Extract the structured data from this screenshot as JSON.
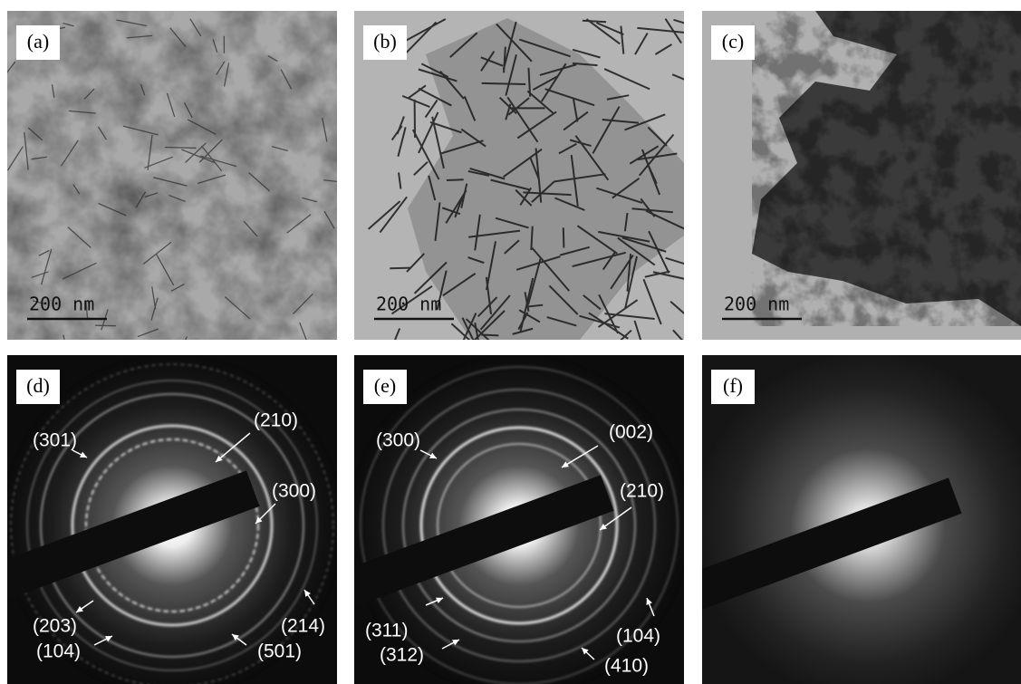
{
  "panels": [
    {
      "label": "(a)",
      "scale_bar": "200 nm"
    },
    {
      "label": "(b)",
      "scale_bar": "200 nm"
    },
    {
      "label": "(c)",
      "scale_bar": "200 nm"
    },
    {
      "label": "(d)",
      "annotations": [
        "(301)",
        "(210)",
        "(300)",
        "(203)",
        "(214)",
        "(104)",
        "(501)"
      ]
    },
    {
      "label": "(e)",
      "annotations": [
        "(300)",
        "(002)",
        "(210)",
        "(311)",
        "(104)",
        "(312)",
        "(410)"
      ]
    },
    {
      "label": "(f)"
    }
  ]
}
